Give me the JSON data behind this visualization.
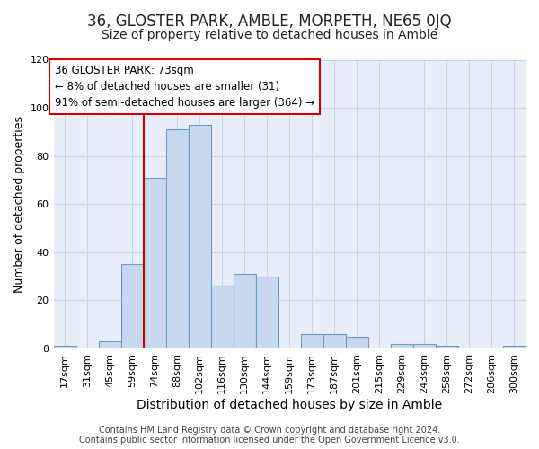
{
  "title": "36, GLOSTER PARK, AMBLE, MORPETH, NE65 0JQ",
  "subtitle": "Size of property relative to detached houses in Amble",
  "xlabel": "Distribution of detached houses by size in Amble",
  "ylabel": "Number of detached properties",
  "bin_labels": [
    "17sqm",
    "31sqm",
    "45sqm",
    "59sqm",
    "74sqm",
    "88sqm",
    "102sqm",
    "116sqm",
    "130sqm",
    "144sqm",
    "159sqm",
    "173sqm",
    "187sqm",
    "201sqm",
    "215sqm",
    "229sqm",
    "243sqm",
    "258sqm",
    "272sqm",
    "286sqm",
    "300sqm"
  ],
  "bar_values": [
    1,
    0,
    3,
    35,
    71,
    91,
    93,
    26,
    31,
    30,
    0,
    6,
    6,
    5,
    0,
    2,
    2,
    1,
    0,
    0,
    1
  ],
  "bar_color": "#c8d8ee",
  "bar_edge_color": "#6a9ec8",
  "vline_x_index": 4,
  "vline_color": "#cc0000",
  "annotation_lines": [
    "36 GLOSTER PARK: 73sqm",
    "← 8% of detached houses are smaller (31)",
    "91% of semi-detached houses are larger (364) →"
  ],
  "annotation_box_color": "#ffffff",
  "annotation_box_edge_color": "#cc0000",
  "ylim": [
    0,
    120
  ],
  "yticks": [
    0,
    20,
    40,
    60,
    80,
    100,
    120
  ],
  "grid_color": "#c8d4e4",
  "figure_bg": "#ffffff",
  "axes_bg": "#e8eef8",
  "footer_line1": "Contains HM Land Registry data © Crown copyright and database right 2024.",
  "footer_line2": "Contains public sector information licensed under the Open Government Licence v3.0.",
  "title_fontsize": 12,
  "subtitle_fontsize": 10,
  "xlabel_fontsize": 10,
  "ylabel_fontsize": 9,
  "tick_fontsize": 8,
  "annotation_fontsize": 8.5,
  "footer_fontsize": 7
}
